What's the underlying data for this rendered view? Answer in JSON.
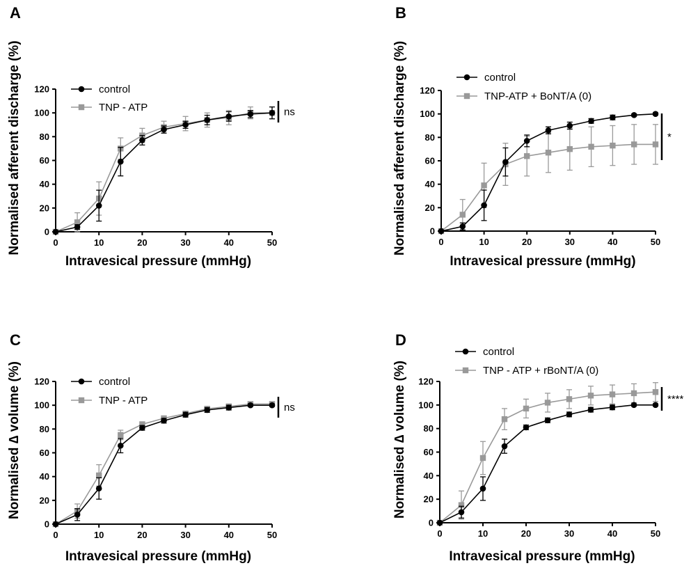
{
  "chart_data": [
    {
      "panel": "A",
      "type": "line",
      "xlabel": "Intravesical pressure (mmHg)",
      "ylabel": "Normalised afferent discharge (%)",
      "xlim": [
        0,
        50
      ],
      "ylim": [
        0,
        120
      ],
      "xticks": [
        "0",
        "10",
        "20",
        "30",
        "40",
        "50"
      ],
      "yticks": [
        "0",
        "20",
        "40",
        "60",
        "80",
        "100",
        "120"
      ],
      "legend_position": "top-left",
      "significance": "ns",
      "series": [
        {
          "name": "control",
          "color": "#000000",
          "marker": "circle",
          "x": [
            0,
            5,
            10,
            15,
            20,
            25,
            30,
            35,
            40,
            45,
            50
          ],
          "y": [
            0,
            4,
            22,
            59,
            77,
            86,
            90,
            94,
            97,
            99,
            100
          ],
          "err": [
            0,
            2,
            13,
            12,
            4,
            3,
            3,
            4,
            4,
            3,
            5
          ]
        },
        {
          "name": "TNP - ATP",
          "color": "#999999",
          "marker": "square",
          "x": [
            0,
            5,
            10,
            15,
            20,
            25,
            30,
            35,
            40,
            45,
            50
          ],
          "y": [
            0,
            8,
            28,
            70,
            81,
            88,
            91,
            94,
            96,
            100,
            100
          ],
          "err": [
            0,
            8,
            14,
            9,
            6,
            5,
            6,
            6,
            6,
            5,
            5
          ]
        }
      ]
    },
    {
      "panel": "B",
      "type": "line",
      "xlabel": "Intravesical pressure (mmHg)",
      "ylabel": "Normalised afferent discharge (%)",
      "xlim": [
        0,
        50
      ],
      "ylim": [
        0,
        120
      ],
      "xticks": [
        "0",
        "10",
        "20",
        "30",
        "40",
        "50"
      ],
      "yticks": [
        "0",
        "20",
        "40",
        "60",
        "80",
        "100",
        "120"
      ],
      "legend_position": "top-left",
      "significance": "*",
      "series": [
        {
          "name": "control",
          "color": "#000000",
          "marker": "circle",
          "x": [
            0,
            5,
            10,
            15,
            20,
            25,
            30,
            35,
            40,
            45,
            50
          ],
          "y": [
            0,
            4,
            22,
            59,
            77,
            86,
            90,
            94,
            97,
            99,
            100
          ],
          "err": [
            0,
            3,
            13,
            12,
            5,
            3,
            3,
            2,
            2,
            1,
            1
          ]
        },
        {
          "name": "TNP-ATP + BoNT/A (0)",
          "color": "#999999",
          "marker": "square",
          "x": [
            0,
            5,
            10,
            15,
            20,
            25,
            30,
            35,
            40,
            45,
            50
          ],
          "y": [
            0,
            14,
            39,
            57,
            64,
            67,
            70,
            72,
            73,
            74,
            74
          ],
          "err": [
            0,
            13,
            19,
            18,
            17,
            17,
            18,
            17,
            17,
            17,
            17
          ]
        }
      ]
    },
    {
      "panel": "C",
      "type": "line",
      "xlabel": "Intravesical pressure (mmHg)",
      "ylabel": "Normalised ∆ volume (%)",
      "xlim": [
        0,
        50
      ],
      "ylim": [
        0,
        120
      ],
      "xticks": [
        "0",
        "10",
        "20",
        "30",
        "40",
        "50"
      ],
      "yticks": [
        "0",
        "20",
        "40",
        "60",
        "80",
        "100",
        "120"
      ],
      "legend_position": "top-left",
      "significance": "ns",
      "series": [
        {
          "name": "control",
          "color": "#000000",
          "marker": "circle",
          "x": [
            0,
            5,
            10,
            15,
            20,
            25,
            30,
            35,
            40,
            45,
            50
          ],
          "y": [
            0,
            8,
            30,
            66,
            81,
            87,
            92,
            96,
            98,
            100,
            100
          ],
          "err": [
            0,
            5,
            9,
            6,
            2,
            2,
            2,
            2,
            2,
            1,
            1
          ]
        },
        {
          "name": "TNP - ATP",
          "color": "#999999",
          "marker": "square",
          "x": [
            0,
            5,
            10,
            15,
            20,
            25,
            30,
            35,
            40,
            45,
            50
          ],
          "y": [
            0,
            11,
            41,
            75,
            84,
            89,
            93,
            97,
            99,
            101,
            101
          ],
          "err": [
            0,
            6,
            9,
            4,
            2,
            2,
            2,
            2,
            2,
            2,
            2
          ]
        }
      ]
    },
    {
      "panel": "D",
      "type": "line",
      "xlabel": "Intravesical pressure (mmHg)",
      "ylabel": "Normalised ∆ volume (%)",
      "xlim": [
        0,
        50
      ],
      "ylim": [
        0,
        120
      ],
      "xticks": [
        "0",
        "10",
        "20",
        "30",
        "40",
        "50"
      ],
      "yticks": [
        "0",
        "20",
        "40",
        "60",
        "80",
        "100",
        "120"
      ],
      "legend_position": "top-left",
      "significance": "****",
      "series": [
        {
          "name": "control",
          "color": "#000000",
          "marker": "circle",
          "x": [
            0,
            5,
            10,
            15,
            20,
            25,
            30,
            35,
            40,
            45,
            50
          ],
          "y": [
            0,
            9,
            29,
            65,
            81,
            87,
            92,
            96,
            98,
            100,
            100
          ],
          "err": [
            0,
            5,
            10,
            6,
            2,
            2,
            2,
            2,
            2,
            1,
            1
          ]
        },
        {
          "name": "TNP - ATP + rBoNT/A (0)",
          "color": "#999999",
          "marker": "square",
          "x": [
            0,
            5,
            10,
            15,
            20,
            25,
            30,
            35,
            40,
            45,
            50
          ],
          "y": [
            0,
            15,
            55,
            88,
            97,
            102,
            105,
            108,
            109,
            110,
            111
          ],
          "err": [
            0,
            12,
            14,
            9,
            8,
            8,
            8,
            8,
            8,
            8,
            8
          ]
        }
      ]
    }
  ]
}
